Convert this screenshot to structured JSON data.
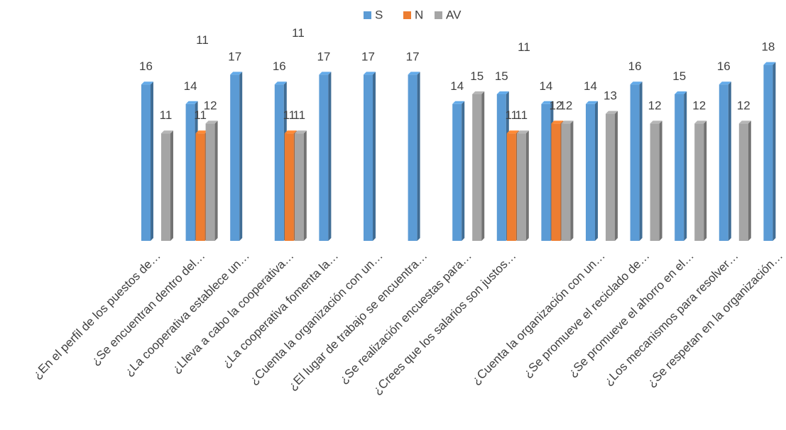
{
  "chart_data": {
    "type": "bar",
    "categories": [
      "¿En el perfil de los puestos de…",
      "¿Se encuentran dentro del…",
      "¿La cooperativa establece un…",
      "¿Lleva a cabo la cooperativa…",
      "¿La cooperativa fomenta la…",
      "¿Cuenta la organización con un…",
      "¿El lugar de trabajo se encuentra…",
      "¿Se realización encuestas para…",
      "¿Crees que los salarios son justos…",
      null,
      "¿Cuenta la organización con un…",
      "¿Se promueve el reciclado de…",
      "¿Se promueve el ahorro en el…",
      "¿Los mecanismos para resolver…",
      "¿Se respetan en la organización…"
    ],
    "series": [
      {
        "name": "S",
        "color": "#5b9bd5",
        "values": [
          16,
          14,
          17,
          16,
          17,
          17,
          17,
          14,
          15,
          14,
          14,
          16,
          15,
          16,
          18
        ]
      },
      {
        "name": "N",
        "color": "#ed7d31",
        "values": [
          null,
          11,
          null,
          11,
          null,
          null,
          null,
          null,
          11,
          12,
          null,
          null,
          null,
          null,
          null
        ]
      },
      {
        "name": "AV",
        "color": "#a5a5a5",
        "values": [
          11,
          12,
          null,
          11,
          null,
          null,
          null,
          15,
          11,
          12,
          13,
          12,
          12,
          12,
          null
        ]
      }
    ],
    "annotations": [
      "11",
      "11",
      "11"
    ],
    "legend": "top"
  }
}
